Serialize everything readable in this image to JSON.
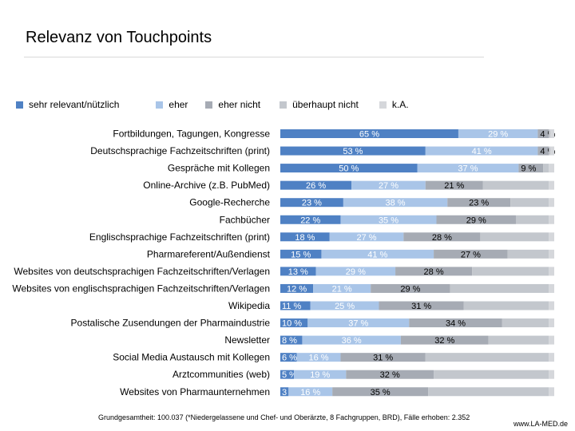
{
  "title": "Relevanz von Touchpoints",
  "footnote": "Grundgesamtheit: 100.037 (*Niedergelassene und Chef- und Oberärzte, 8 Fachgruppen, BRD), Fälle erhoben: 2.352",
  "source": "www.LA-MED.de",
  "legend": [
    {
      "label": "sehr relevant/nützlich",
      "color": "#4f81c4"
    },
    {
      "label": "eher",
      "color": "#a9c5e8"
    },
    {
      "label": "eher nicht",
      "color": "#a6abb4"
    },
    {
      "label": "überhaupt nicht",
      "color": "#c3c7cd"
    },
    {
      "label": "k.A.",
      "color": "#d5d7db"
    }
  ],
  "chart_data": {
    "type": "bar",
    "orientation": "horizontal",
    "stacked": true,
    "unit": "%",
    "categories": [
      "Fortbildungen, Tagungen, Kongresse",
      "Deutschsprachige Fachzeitschriften (print)",
      "Gespräche mit Kollegen",
      "Online-Archive (z.B. PubMed)",
      "Google-Recherche",
      "Fachbücher",
      "Englischsprachige Fachzeitschriften (print)",
      "Pharmareferent/Außendienst",
      "Websites von deutschsprachigen Fachzeitschriften/Verlagen",
      "Websites von englischsprachigen Fachzeitschriften/Verlagen",
      "Wikipedia",
      "Postalische Zusendungen der Pharmaindustrie",
      "Newsletter",
      "Social Media Austausch mit Kollegen",
      "Arztcommunities (web)",
      "Websites von Pharmaunternehmen"
    ],
    "series": [
      {
        "name": "sehr relevant/nützlich",
        "color": "#4f81c4",
        "values": [
          65,
          53,
          50,
          26,
          23,
          22,
          18,
          15,
          13,
          12,
          11,
          10,
          8,
          6,
          5,
          3
        ],
        "labels": [
          "65 %",
          "53 %",
          "50 %",
          "26 %",
          "23 %",
          "22 %",
          "18 %",
          "15 %",
          "13 %",
          "12 %",
          "11 %",
          "10 %",
          "8 %",
          "6 %",
          "5 %",
          "3 %"
        ]
      },
      {
        "name": "eher",
        "color": "#a9c5e8",
        "values": [
          29,
          41,
          37,
          27,
          38,
          35,
          27,
          41,
          29,
          21,
          25,
          37,
          36,
          16,
          19,
          16
        ],
        "labels": [
          "29 %",
          "41 %",
          "37 %",
          "27 %",
          "38 %",
          "35 %",
          "27 %",
          "41 %",
          "29 %",
          "21 %",
          "25 %",
          "37 %",
          "36 %",
          "16 %",
          "19 %",
          "16 %"
        ]
      },
      {
        "name": "eher nicht",
        "color": "#a6abb4",
        "values": [
          4,
          4,
          9,
          21,
          23,
          29,
          28,
          27,
          28,
          29,
          31,
          34,
          32,
          31,
          32,
          35
        ],
        "labels": [
          "4 %",
          "4 %",
          "9 %",
          "21 %",
          "23 %",
          "29 %",
          "28 %",
          "27 %",
          "28 %",
          "29 %",
          "31 %",
          "34 %",
          "32 %",
          "31 %",
          "32 %",
          "35 %"
        ]
      },
      {
        "name": "überhaupt nicht",
        "color": "#c3c7cd",
        "values": [
          0.5,
          0.5,
          2,
          24,
          14,
          12,
          25,
          15,
          28,
          36,
          31,
          17,
          22,
          45,
          42,
          44
        ]
      },
      {
        "name": "k.A.",
        "color": "#d5d7db",
        "values": [
          1.5,
          1.5,
          2,
          2,
          2,
          2,
          2,
          2,
          2,
          2,
          2,
          2,
          2,
          2,
          2,
          2
        ]
      }
    ],
    "xlim": [
      0,
      100
    ],
    "grid": false,
    "legend_position": "top-left"
  }
}
